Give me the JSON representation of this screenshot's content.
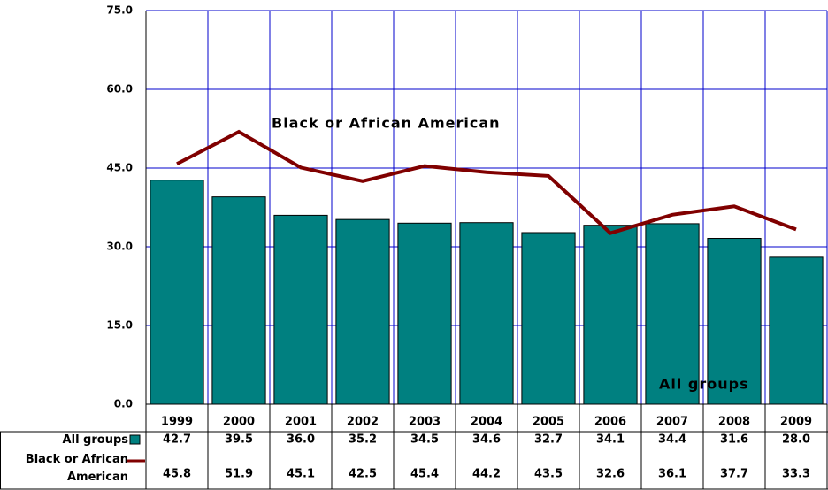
{
  "chart_data": {
    "type": "bar-line",
    "categories": [
      "1999",
      "2000",
      "2001",
      "2002",
      "2003",
      "2004",
      "2005",
      "2006",
      "2007",
      "2008",
      "2009"
    ],
    "series": [
      {
        "name": "All groups",
        "type": "bar",
        "color": "#008080",
        "values": [
          42.7,
          39.5,
          36.0,
          35.2,
          34.5,
          34.6,
          32.7,
          34.1,
          34.4,
          31.6,
          28.0
        ],
        "value_labels": [
          "42.7",
          "39.5",
          "36.0",
          "35.2",
          "34.5",
          "34.6",
          "32.7",
          "34.1",
          "34.4",
          "31.6",
          "28.0"
        ]
      },
      {
        "name": "Black or African American",
        "type": "line",
        "color": "#800000",
        "values": [
          45.8,
          51.9,
          45.1,
          42.5,
          45.4,
          44.2,
          43.5,
          32.6,
          36.1,
          37.7,
          33.3
        ],
        "value_labels": [
          "45.8",
          "51.9",
          "45.1",
          "42.5",
          "45.4",
          "44.2",
          "43.5",
          "32.6",
          "36.1",
          "37.7",
          "33.3"
        ]
      }
    ],
    "ylim": [
      0,
      75
    ],
    "yticks": [
      {
        "value": 0,
        "label": "0.0"
      },
      {
        "value": 15,
        "label": "15.0"
      },
      {
        "value": 30,
        "label": "30.0"
      },
      {
        "value": 45,
        "label": "45.0"
      },
      {
        "value": 60,
        "label": "60.0"
      },
      {
        "value": 75,
        "label": "75.0"
      }
    ],
    "grid": true,
    "annotations": [
      {
        "text": "Black or African American"
      },
      {
        "text": "All groups"
      }
    ]
  }
}
